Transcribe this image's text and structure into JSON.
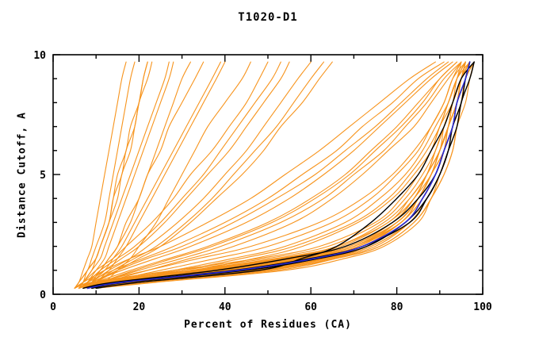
{
  "chart": {
    "title": "T1020-D1",
    "xlabel": "Percent of Residues (CA)",
    "ylabel": "Distance Cutoff, A"
  },
  "chart_data": {
    "type": "line",
    "title": "T1020-D1",
    "xlabel": "Percent of Residues (CA)",
    "ylabel": "Distance Cutoff, A",
    "xlim": [
      0,
      100
    ],
    "ylim": [
      0,
      10
    ],
    "x_major_ticks": [
      0,
      20,
      40,
      60,
      80,
      100
    ],
    "x_minor_step": 10,
    "y_major_ticks": [
      0,
      5,
      10
    ],
    "y_minor_step": 1,
    "grid": false,
    "legend": "none",
    "colors": {
      "orange": "#f7941d",
      "black": "#000000",
      "blue": "#2a2ad4"
    },
    "y_levels": [
      0.25,
      0.5,
      1,
      1.5,
      2,
      3,
      4,
      5,
      6,
      7,
      8,
      9,
      9.7
    ],
    "series": [
      {
        "group": "orange",
        "x": [
          6,
          12,
          35,
          55,
          68,
          79,
          84,
          87,
          89,
          91,
          93,
          95,
          96
        ]
      },
      {
        "group": "orange",
        "x": [
          7,
          15,
          42,
          60,
          71,
          81,
          85,
          88,
          90,
          92,
          94,
          95,
          97
        ]
      },
      {
        "group": "orange",
        "x": [
          8,
          18,
          48,
          63,
          73,
          82,
          86,
          89,
          91,
          93,
          94,
          96,
          97
        ]
      },
      {
        "group": "orange",
        "x": [
          6,
          10,
          30,
          50,
          64,
          76,
          82,
          86,
          89,
          91,
          93,
          94,
          96
        ]
      },
      {
        "group": "orange",
        "x": [
          9,
          20,
          50,
          65,
          75,
          83,
          87,
          90,
          92,
          93,
          95,
          96,
          98
        ]
      },
      {
        "group": "orange",
        "x": [
          7,
          13,
          38,
          57,
          69,
          80,
          85,
          88,
          90,
          92,
          93,
          95,
          96
        ]
      },
      {
        "group": "orange",
        "x": [
          8,
          16,
          44,
          61,
          72,
          81,
          86,
          89,
          91,
          92,
          94,
          95,
          97
        ]
      },
      {
        "group": "orange",
        "x": [
          6,
          11,
          33,
          53,
          66,
          78,
          83,
          87,
          90,
          92,
          93,
          95,
          96
        ]
      },
      {
        "group": "orange",
        "x": [
          10,
          22,
          52,
          66,
          76,
          84,
          88,
          90,
          92,
          94,
          95,
          96,
          98
        ]
      },
      {
        "group": "orange",
        "x": [
          7,
          14,
          40,
          59,
          70,
          80,
          85,
          88,
          91,
          92,
          94,
          95,
          97
        ]
      },
      {
        "group": "orange",
        "x": [
          8,
          17,
          46,
          62,
          72,
          82,
          86,
          89,
          91,
          93,
          94,
          96,
          97
        ]
      },
      {
        "group": "orange",
        "x": [
          6,
          12,
          36,
          56,
          68,
          79,
          84,
          88,
          90,
          92,
          93,
          95,
          96
        ]
      },
      {
        "group": "orange",
        "x": [
          9,
          19,
          49,
          64,
          74,
          83,
          87,
          90,
          92,
          93,
          95,
          96,
          97
        ]
      },
      {
        "group": "orange",
        "x": [
          7,
          15,
          41,
          60,
          71,
          81,
          85,
          88,
          90,
          92,
          94,
          95,
          96
        ]
      },
      {
        "group": "orange",
        "x": [
          8,
          16,
          45,
          61,
          72,
          81,
          86,
          89,
          91,
          93,
          94,
          96,
          97
        ]
      },
      {
        "group": "orange",
        "x": [
          5,
          9,
          28,
          48,
          62,
          75,
          81,
          85,
          88,
          90,
          92,
          94,
          95
        ]
      },
      {
        "group": "orange",
        "x": [
          10,
          24,
          54,
          68,
          77,
          85,
          88,
          91,
          93,
          94,
          95,
          97,
          98
        ]
      },
      {
        "group": "orange",
        "x": [
          7,
          13,
          39,
          58,
          70,
          80,
          85,
          88,
          90,
          92,
          94,
          95,
          97
        ]
      },
      {
        "group": "orange",
        "x": [
          8,
          18,
          47,
          63,
          73,
          82,
          86,
          89,
          91,
          93,
          94,
          96,
          97
        ]
      },
      {
        "group": "orange",
        "x": [
          6,
          11,
          34,
          54,
          67,
          78,
          84,
          87,
          90,
          91,
          93,
          95,
          96
        ]
      },
      {
        "group": "orange",
        "x": [
          7,
          14,
          43,
          60,
          71,
          80,
          85,
          88,
          90,
          92,
          94,
          96,
          97
        ]
      },
      {
        "group": "orange",
        "x": [
          8,
          15,
          44,
          62,
          72,
          82,
          86,
          89,
          91,
          93,
          95,
          96,
          98
        ]
      },
      {
        "group": "orange",
        "x": [
          6,
          12,
          37,
          56,
          69,
          79,
          84,
          87,
          90,
          92,
          93,
          95,
          97
        ]
      },
      {
        "group": "orange",
        "x": [
          9,
          18,
          48,
          64,
          74,
          83,
          87,
          90,
          92,
          94,
          95,
          96,
          98
        ]
      },
      {
        "group": "orange",
        "x": [
          7,
          13,
          40,
          58,
          70,
          81,
          85,
          88,
          91,
          93,
          94,
          96,
          97
        ]
      },
      {
        "group": "orange",
        "x": [
          8,
          16,
          45,
          62,
          73,
          82,
          86,
          89,
          91,
          93,
          95,
          96,
          97
        ]
      },
      {
        "group": "orange",
        "x": [
          10,
          20,
          50,
          66,
          76,
          84,
          88,
          91,
          93,
          94,
          96,
          97,
          98
        ]
      },
      {
        "group": "orange",
        "x": [
          6,
          11,
          32,
          52,
          66,
          77,
          83,
          87,
          89,
          91,
          93,
          95,
          96
        ]
      },
      {
        "group": "orange",
        "x": [
          7,
          12,
          25,
          38,
          50,
          65,
          74,
          80,
          85,
          88,
          91,
          93,
          96
        ]
      },
      {
        "group": "orange",
        "x": [
          8,
          14,
          30,
          44,
          56,
          70,
          78,
          83,
          87,
          90,
          92,
          94,
          97
        ]
      },
      {
        "group": "orange",
        "x": [
          6,
          10,
          22,
          34,
          46,
          62,
          72,
          79,
          84,
          88,
          91,
          93,
          95
        ]
      },
      {
        "group": "orange",
        "x": [
          9,
          16,
          33,
          47,
          58,
          71,
          79,
          84,
          88,
          90,
          93,
          95,
          97
        ]
      },
      {
        "group": "orange",
        "x": [
          7,
          13,
          28,
          42,
          54,
          68,
          76,
          82,
          86,
          89,
          92,
          94,
          96
        ]
      },
      {
        "group": "orange",
        "x": [
          6,
          9,
          16,
          24,
          32,
          45,
          55,
          63,
          70,
          76,
          82,
          88,
          93
        ]
      },
      {
        "group": "orange",
        "x": [
          7,
          10,
          18,
          27,
          36,
          50,
          60,
          68,
          74,
          80,
          85,
          90,
          94
        ]
      },
      {
        "group": "orange",
        "x": [
          5,
          8,
          14,
          21,
          28,
          40,
          50,
          58,
          66,
          72,
          79,
          85,
          91
        ]
      },
      {
        "group": "orange",
        "x": [
          8,
          11,
          20,
          30,
          39,
          53,
          63,
          70,
          77,
          82,
          87,
          91,
          95
        ]
      },
      {
        "group": "orange",
        "x": [
          6,
          9,
          15,
          22,
          30,
          42,
          52,
          61,
          68,
          75,
          81,
          87,
          92
        ]
      },
      {
        "group": "orange",
        "x": [
          7,
          11,
          19,
          28,
          37,
          51,
          61,
          69,
          75,
          81,
          86,
          90,
          94
        ]
      },
      {
        "group": "orange",
        "x": [
          5,
          7,
          12,
          18,
          25,
          36,
          46,
          54,
          62,
          69,
          76,
          83,
          89
        ]
      },
      {
        "group": "orange",
        "x": [
          8,
          12,
          22,
          32,
          42,
          56,
          65,
          72,
          78,
          84,
          88,
          92,
          95
        ]
      },
      {
        "group": "orange",
        "x": [
          5,
          6,
          8,
          9,
          10,
          12,
          13,
          14,
          15,
          16,
          17,
          18,
          19
        ]
      },
      {
        "group": "orange",
        "x": [
          6,
          7,
          9,
          10,
          11,
          13,
          15,
          16,
          18,
          19,
          20,
          21,
          22
        ]
      },
      {
        "group": "orange",
        "x": [
          7,
          8,
          10,
          12,
          13,
          15,
          17,
          19,
          21,
          23,
          25,
          27,
          28
        ]
      },
      {
        "group": "orange",
        "x": [
          5,
          6,
          7,
          8,
          9,
          10,
          11,
          12,
          13,
          14,
          15,
          16,
          17
        ]
      },
      {
        "group": "orange",
        "x": [
          8,
          9,
          11,
          13,
          15,
          18,
          20,
          22,
          24,
          26,
          28,
          30,
          32
        ]
      },
      {
        "group": "orange",
        "x": [
          6,
          7,
          9,
          11,
          12,
          14,
          16,
          18,
          20,
          22,
          24,
          26,
          27
        ]
      },
      {
        "group": "orange",
        "x": [
          9,
          10,
          13,
          15,
          17,
          20,
          23,
          26,
          29,
          32,
          35,
          38,
          40
        ]
      },
      {
        "group": "orange",
        "x": [
          5,
          6,
          8,
          10,
          11,
          13,
          14,
          16,
          17,
          19,
          20,
          22,
          23
        ]
      },
      {
        "group": "orange",
        "x": [
          7,
          8,
          11,
          13,
          15,
          17,
          20,
          22,
          25,
          27,
          30,
          33,
          35
        ]
      },
      {
        "group": "orange",
        "x": [
          6,
          7,
          8,
          10,
          11,
          13,
          14,
          15,
          17,
          18,
          20,
          21,
          22
        ]
      },
      {
        "group": "orange",
        "x": [
          10,
          12,
          15,
          18,
          20,
          24,
          27,
          30,
          33,
          36,
          40,
          44,
          46
        ]
      },
      {
        "group": "orange",
        "x": [
          8,
          9,
          12,
          14,
          16,
          19,
          22,
          25,
          28,
          31,
          34,
          37,
          39
        ]
      },
      {
        "group": "orange",
        "x": [
          6,
          8,
          12,
          16,
          20,
          26,
          31,
          36,
          41,
          45,
          49,
          53,
          55
        ]
      },
      {
        "group": "orange",
        "x": [
          7,
          9,
          13,
          18,
          22,
          29,
          35,
          40,
          45,
          49,
          53,
          57,
          60
        ]
      },
      {
        "group": "orange",
        "x": [
          5,
          7,
          10,
          14,
          17,
          23,
          28,
          32,
          37,
          41,
          45,
          48,
          50
        ]
      },
      {
        "group": "orange",
        "x": [
          8,
          10,
          15,
          20,
          25,
          32,
          38,
          44,
          49,
          53,
          58,
          62,
          65
        ]
      },
      {
        "group": "orange",
        "x": [
          6,
          8,
          11,
          15,
          19,
          25,
          30,
          35,
          39,
          43,
          47,
          51,
          53
        ]
      },
      {
        "group": "orange",
        "x": [
          7,
          10,
          14,
          19,
          24,
          31,
          37,
          42,
          47,
          52,
          56,
          60,
          63
        ]
      },
      {
        "group": "black",
        "x": [
          9,
          17,
          45,
          62,
          73,
          82,
          87,
          90,
          92,
          93,
          95,
          96,
          97
        ]
      },
      {
        "group": "black",
        "x": [
          8,
          15,
          42,
          60,
          72,
          83,
          87,
          90,
          92,
          94,
          95,
          97,
          98
        ]
      },
      {
        "group": "black",
        "x": [
          10,
          20,
          48,
          58,
          66,
          74,
          80,
          85,
          88,
          91,
          93,
          95,
          98
        ]
      },
      {
        "group": "black",
        "x": [
          7,
          14,
          38,
          55,
          68,
          79,
          85,
          89,
          91,
          93,
          94,
          96,
          97
        ]
      },
      {
        "group": "blue",
        "x": [
          8,
          16,
          43,
          61,
          72,
          82,
          86,
          89,
          91,
          93,
          94,
          96,
          97
        ]
      }
    ]
  }
}
